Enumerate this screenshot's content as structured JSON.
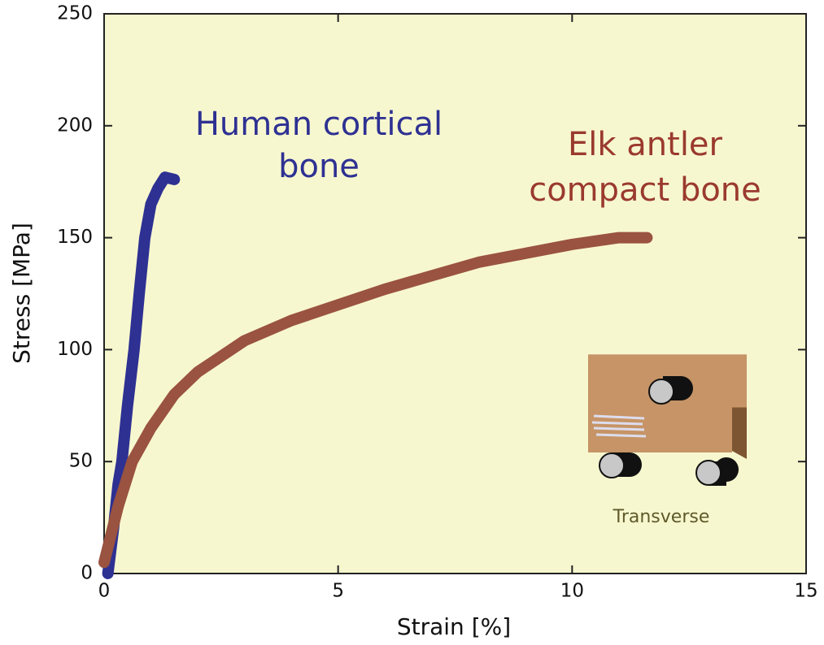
{
  "chart_data": {
    "type": "line",
    "xlabel": "Strain [%]",
    "ylabel": "Stress [MPa]",
    "xlim": [
      0,
      15
    ],
    "ylim": [
      0,
      250
    ],
    "xticks": [
      0,
      5,
      10,
      15
    ],
    "yticks": [
      0,
      50,
      100,
      150,
      200,
      250
    ],
    "background": "#f7f7cf",
    "series": [
      {
        "color": "#2e3192",
        "x": [
          0.08,
          0.2,
          0.3,
          0.38,
          0.5,
          0.64,
          0.75,
          0.87,
          1.0,
          1.15,
          1.3,
          1.5
        ],
        "values": [
          0,
          20,
          40,
          50,
          75,
          100,
          125,
          150,
          165,
          172,
          177,
          176
        ]
      },
      {
        "color": "#9a5340",
        "x": [
          0,
          0.3,
          0.6,
          1,
          1.5,
          2,
          3,
          4,
          5,
          6,
          7,
          8,
          9,
          10,
          11,
          11.6
        ],
        "values": [
          5,
          30,
          50,
          65,
          80,
          90,
          104,
          113,
          120,
          127,
          133,
          139,
          143,
          147,
          150,
          150
        ]
      }
    ],
    "annotations": [
      {
        "lines": [
          "Human cortical",
          "bone"
        ],
        "color": "#2e3192"
      },
      {
        "lines": [
          "Elk antler",
          "compact bone"
        ],
        "color": "#9a3a2e"
      },
      {
        "lines": [
          "Transverse"
        ],
        "color": "#5f5a2a"
      }
    ]
  }
}
